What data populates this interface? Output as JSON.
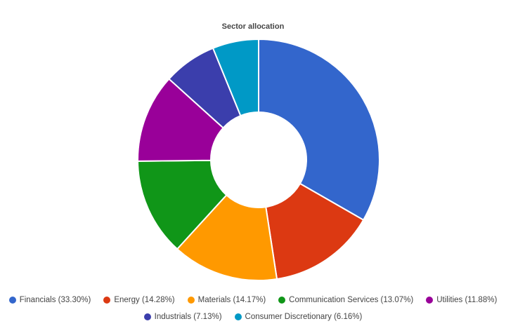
{
  "chart_data": {
    "type": "pie",
    "variant": "donut",
    "title": "Sector allocation",
    "categories": [
      "Financials",
      "Energy",
      "Materials",
      "Communication Services",
      "Utilities",
      "Industrials",
      "Consumer Discretionary"
    ],
    "values": [
      33.3,
      14.28,
      14.17,
      13.07,
      11.88,
      7.13,
      6.16
    ],
    "colors": [
      "#3366cc",
      "#dc3912",
      "#ff9900",
      "#109618",
      "#990099",
      "#3b3eac",
      "#0099c6"
    ],
    "legend_labels": [
      "Financials (33.30%)",
      "Energy (14.28%)",
      "Materials (14.17%)",
      "Communication Services (13.07%)",
      "Utilities (11.88%)",
      "Industrials (7.13%)",
      "Consumer Discretionary (6.16%)"
    ],
    "legend_placement": "bottom"
  }
}
